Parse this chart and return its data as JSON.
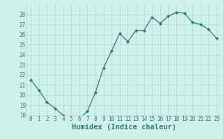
{
  "xlabel": "Humidex (Indice chaleur)",
  "x": [
    0,
    1,
    2,
    3,
    4,
    5,
    6,
    7,
    8,
    9,
    10,
    11,
    12,
    13,
    14,
    15,
    16,
    17,
    18,
    19,
    20,
    21,
    22,
    23
  ],
  "y": [
    21.5,
    20.5,
    19.3,
    18.7,
    18.0,
    17.7,
    17.7,
    18.4,
    20.3,
    22.7,
    24.4,
    26.1,
    25.3,
    26.4,
    26.4,
    27.7,
    27.1,
    27.8,
    28.2,
    28.1,
    27.2,
    27.0,
    26.5,
    25.6
  ],
  "line_color": "#2d7d6e",
  "marker": "D",
  "marker_size": 2.0,
  "bg_color": "#cff0eb",
  "grid_color": "#aad8d2",
  "ylim": [
    18,
    29
  ],
  "xlim": [
    -0.5,
    23.5
  ],
  "yticks": [
    18,
    19,
    20,
    21,
    22,
    23,
    24,
    25,
    26,
    27,
    28
  ],
  "xticks": [
    0,
    1,
    2,
    3,
    4,
    5,
    6,
    7,
    8,
    9,
    10,
    11,
    12,
    13,
    14,
    15,
    16,
    17,
    18,
    19,
    20,
    21,
    22,
    23
  ],
  "tick_fontsize": 5.5,
  "xlabel_fontsize": 7.5,
  "line_width": 0.9
}
